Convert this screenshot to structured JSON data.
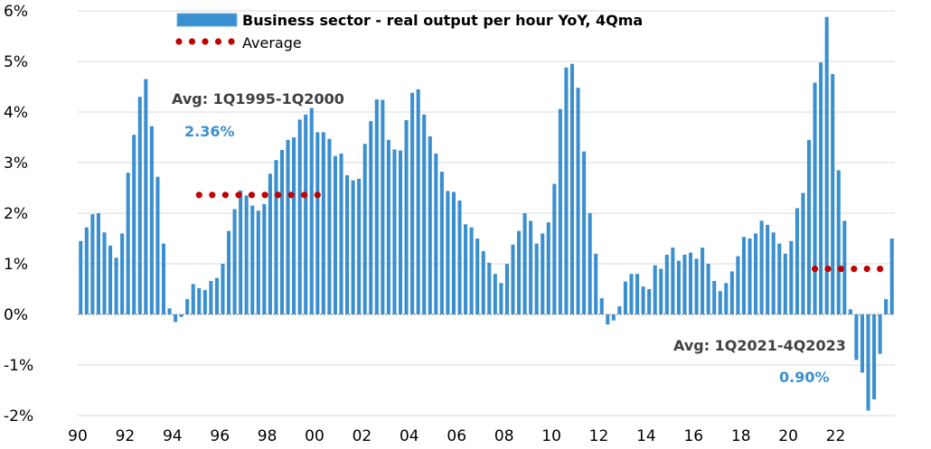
{
  "chart_data": {
    "type": "bar",
    "title": "",
    "xlabel": "",
    "ylabel": "",
    "ylim": [
      -2,
      6
    ],
    "y_ticks": [
      -2,
      -1,
      0,
      1,
      2,
      3,
      4,
      5,
      6
    ],
    "y_tick_labels": [
      "-2%",
      "-1%",
      "0%",
      "1%",
      "2%",
      "3%",
      "4%",
      "5%",
      "6%"
    ],
    "x_tick_labels": [
      "90",
      "92",
      "94",
      "96",
      "98",
      "00",
      "02",
      "04",
      "06",
      "08",
      "10",
      "12",
      "14",
      "16",
      "18",
      "20",
      "22"
    ],
    "x_start": "1Q1990",
    "grid": true,
    "legend_position": "top",
    "colors": {
      "bar": "#3a8fd0",
      "bar_edge": "#6fb0e0",
      "average": "#c00000",
      "annotation_value": "#3a8fd0",
      "grid": "#d9d9d9",
      "zero_line": "#7f7f7f"
    },
    "series": [
      {
        "name": "Business sector - real output per hour YoY, 4Qma",
        "values": [
          1.45,
          1.72,
          1.98,
          2.0,
          1.62,
          1.36,
          1.12,
          1.6,
          2.8,
          3.55,
          4.3,
          4.65,
          3.72,
          2.72,
          1.4,
          0.12,
          -0.15,
          -0.05,
          0.3,
          0.6,
          0.52,
          0.48,
          0.66,
          0.72,
          1.0,
          1.65,
          2.08,
          2.45,
          2.35,
          2.15,
          2.05,
          2.18,
          2.78,
          3.05,
          3.25,
          3.45,
          3.5,
          3.85,
          3.95,
          4.08,
          3.6,
          3.6,
          3.47,
          3.13,
          3.18,
          2.75,
          2.65,
          2.68,
          3.37,
          3.82,
          4.25,
          4.24,
          3.45,
          3.26,
          3.24,
          3.84,
          4.38,
          4.45,
          3.95,
          3.52,
          3.18,
          2.82,
          2.44,
          2.42,
          2.25,
          1.78,
          1.72,
          1.5,
          1.25,
          1.02,
          0.8,
          0.62,
          1.0,
          1.38,
          1.65,
          2.0,
          1.85,
          1.4,
          1.6,
          1.82,
          2.58,
          4.06,
          4.88,
          4.95,
          4.48,
          3.22,
          2.0,
          1.2,
          0.32,
          -0.2,
          -0.12,
          0.16,
          0.65,
          0.8,
          0.8,
          0.55,
          0.5,
          0.97,
          0.9,
          1.18,
          1.32,
          1.06,
          1.18,
          1.22,
          1.1,
          1.32,
          1.0,
          0.66,
          0.46,
          0.62,
          0.85,
          1.15,
          1.53,
          1.5,
          1.6,
          1.85,
          1.77,
          1.62,
          1.4,
          1.2,
          1.45,
          2.1,
          2.4,
          3.45,
          4.58,
          4.98,
          5.88,
          4.75,
          2.85,
          1.85,
          0.1,
          -0.9,
          -1.15,
          -1.9,
          -1.68,
          -0.78,
          0.3,
          1.5
        ]
      }
    ],
    "averages": [
      {
        "label": "Avg: 1Q1995-1Q2000",
        "value": 2.36,
        "value_label": "2.36%",
        "from": "1Q1995",
        "to": "1Q2000"
      },
      {
        "label": "Avg: 1Q2021-4Q2023",
        "value": 0.9,
        "value_label": "0.90%",
        "from": "1Q2021",
        "to": "4Q2023"
      }
    ],
    "legend": [
      {
        "name": "Business sector - real output per hour YoY, 4Qma",
        "marker": "bar"
      },
      {
        "name": "Average",
        "marker": "dotted-line"
      }
    ]
  }
}
